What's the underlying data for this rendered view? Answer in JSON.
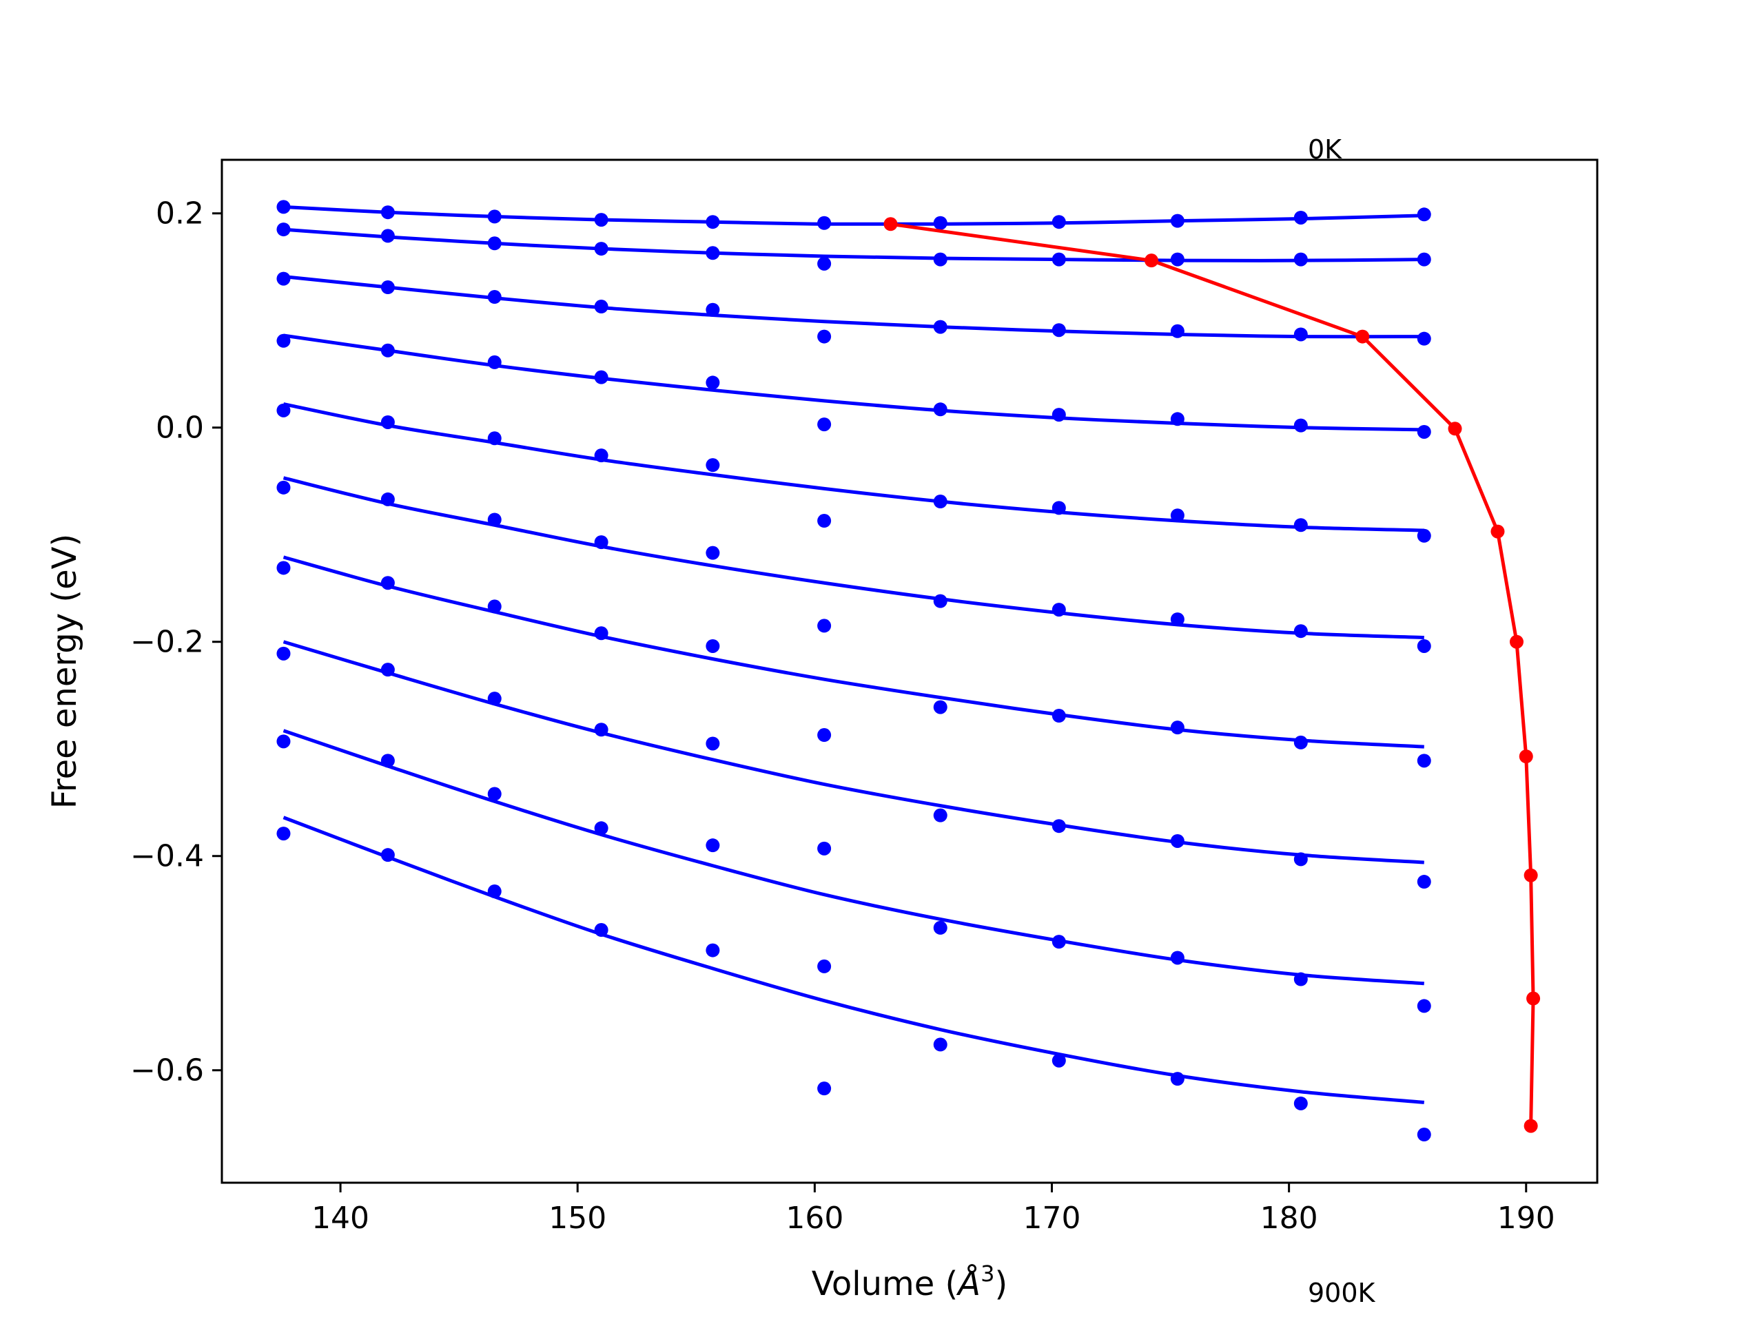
{
  "chart_data": {
    "type": "scatter",
    "xlabel_main": "Volume (",
    "xlabel_unit": "Å",
    "xlabel_sup": "3",
    "xlabel_close": ")",
    "ylabel": "Free energy (eV)",
    "xlim": [
      135,
      193
    ],
    "ylim": [
      -0.705,
      0.25
    ],
    "xticks": [
      140,
      150,
      160,
      170,
      180,
      190
    ],
    "xtick_labels": [
      "140",
      "150",
      "160",
      "170",
      "180",
      "190"
    ],
    "yticks": [
      0.2,
      0.0,
      -0.2,
      -0.4,
      -0.6
    ],
    "ytick_labels": [
      "0.2",
      "0.0",
      "−0.2",
      "−0.4",
      "−0.6"
    ],
    "annotations": {
      "top": "0K",
      "bottom": "900K"
    },
    "colors": {
      "points": "#0000ff",
      "fits": "#0000ff",
      "minimum_path": "#ff0000",
      "axes": "#000000"
    },
    "x_points": [
      137.6,
      142.0,
      146.5,
      151.0,
      155.7,
      160.4,
      165.3,
      170.3,
      175.3,
      180.5,
      185.7
    ],
    "series": [
      {
        "points": [
          0.206,
          0.201,
          0.197,
          0.194,
          0.192,
          0.191,
          0.191,
          0.192,
          0.193,
          0.196,
          0.199
        ],
        "fit": [
          0.206,
          0.201,
          0.197,
          0.194,
          0.192,
          0.19,
          0.19,
          0.191,
          0.193,
          0.195,
          0.198
        ]
      },
      {
        "points": [
          0.185,
          0.179,
          0.172,
          0.167,
          0.163,
          0.153,
          0.157,
          0.157,
          0.157,
          0.157,
          0.157
        ],
        "fit": [
          0.185,
          0.178,
          0.172,
          0.167,
          0.163,
          0.16,
          0.158,
          0.157,
          0.156,
          0.156,
          0.157
        ]
      },
      {
        "points": [
          0.139,
          0.131,
          0.122,
          0.113,
          0.11,
          0.085,
          0.094,
          0.091,
          0.09,
          0.087,
          0.083
        ],
        "fit": [
          0.141,
          0.131,
          0.121,
          0.112,
          0.105,
          0.099,
          0.094,
          0.09,
          0.087,
          0.085,
          0.085
        ]
      },
      {
        "points": [
          0.081,
          0.072,
          0.061,
          0.047,
          0.042,
          0.003,
          0.017,
          0.012,
          0.008,
          0.002,
          -0.004
        ],
        "fit": [
          0.086,
          0.072,
          0.058,
          0.046,
          0.035,
          0.025,
          0.016,
          0.009,
          0.004,
          0.0,
          -0.002
        ]
      },
      {
        "points": [
          0.016,
          0.005,
          -0.01,
          -0.026,
          -0.035,
          -0.087,
          -0.069,
          -0.075,
          -0.082,
          -0.091,
          -0.101
        ],
        "fit": [
          0.022,
          0.002,
          -0.014,
          -0.03,
          -0.044,
          -0.057,
          -0.069,
          -0.079,
          -0.087,
          -0.093,
          -0.096
        ]
      },
      {
        "points": [
          -0.056,
          -0.067,
          -0.086,
          -0.107,
          -0.117,
          -0.185,
          -0.162,
          -0.17,
          -0.179,
          -0.19,
          -0.204
        ],
        "fit": [
          -0.047,
          -0.071,
          -0.091,
          -0.111,
          -0.129,
          -0.145,
          -0.16,
          -0.173,
          -0.184,
          -0.192,
          -0.196
        ]
      },
      {
        "points": [
          -0.131,
          -0.145,
          -0.167,
          -0.192,
          -0.204,
          -0.287,
          -0.261,
          -0.269,
          -0.28,
          -0.294,
          -0.311
        ],
        "fit": [
          -0.121,
          -0.148,
          -0.172,
          -0.195,
          -0.216,
          -0.235,
          -0.252,
          -0.268,
          -0.282,
          -0.292,
          -0.298
        ]
      },
      {
        "points": [
          -0.211,
          -0.226,
          -0.253,
          -0.282,
          -0.295,
          -0.393,
          -0.362,
          -0.372,
          -0.386,
          -0.403,
          -0.424
        ],
        "fit": [
          -0.2,
          -0.229,
          -0.258,
          -0.285,
          -0.31,
          -0.333,
          -0.353,
          -0.371,
          -0.387,
          -0.399,
          -0.406
        ]
      },
      {
        "points": [
          -0.293,
          -0.311,
          -0.342,
          -0.374,
          -0.39,
          -0.503,
          -0.467,
          -0.48,
          -0.495,
          -0.515,
          -0.54
        ],
        "fit": [
          -0.283,
          -0.316,
          -0.349,
          -0.38,
          -0.409,
          -0.436,
          -0.459,
          -0.479,
          -0.497,
          -0.511,
          -0.519
        ]
      },
      {
        "points": [
          -0.379,
          -0.399,
          -0.433,
          -0.469,
          -0.488,
          -0.617,
          -0.576,
          -0.591,
          -0.608,
          -0.631,
          -0.66
        ],
        "fit": [
          -0.364,
          -0.401,
          -0.438,
          -0.473,
          -0.505,
          -0.535,
          -0.562,
          -0.585,
          -0.605,
          -0.62,
          -0.63
        ]
      }
    ],
    "minimum_path": {
      "x": [
        163.2,
        174.2,
        183.1,
        187.0,
        188.8,
        189.6,
        190.0,
        190.2,
        190.3,
        190.2
      ],
      "y": [
        0.19,
        0.156,
        0.085,
        -0.001,
        -0.097,
        -0.2,
        -0.307,
        -0.418,
        -0.533,
        -0.652
      ]
    }
  }
}
